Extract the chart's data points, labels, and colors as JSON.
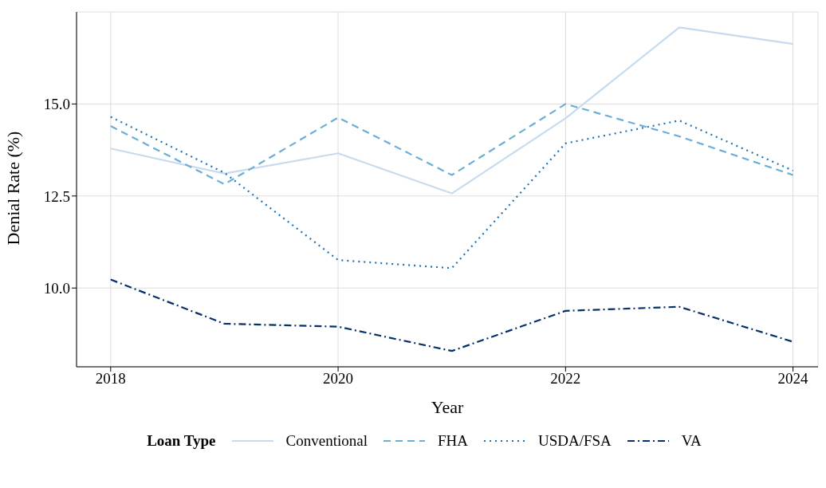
{
  "chart_data": {
    "type": "line",
    "xlabel": "Year",
    "ylabel": "Denial Rate (%)",
    "legend_title": "Loan Type",
    "x": [
      2018,
      2019,
      2020,
      2021,
      2022,
      2023,
      2024
    ],
    "series": [
      {
        "name": "Conventional",
        "color": "#c6dbef",
        "line_style": "solid",
        "values": [
          13.79,
          13.11,
          13.66,
          12.57,
          14.61,
          17.08,
          16.63
        ]
      },
      {
        "name": "FHA",
        "color": "#6baed6",
        "line_style": "dashed",
        "values": [
          14.4,
          12.82,
          14.63,
          13.07,
          15.0,
          14.12,
          13.07
        ]
      },
      {
        "name": "USDA/FSA",
        "color": "#2171b5",
        "line_style": "dotted",
        "values": [
          14.65,
          13.13,
          10.76,
          10.54,
          13.93,
          14.55,
          13.19
        ]
      },
      {
        "name": "VA",
        "color": "#08306b",
        "line_style": "dashdot",
        "values": [
          10.23,
          9.03,
          8.95,
          8.29,
          9.38,
          9.49,
          8.54
        ]
      }
    ],
    "xlim": [
      2017.7,
      2024.22
    ],
    "xticks": [
      2018,
      2020,
      2022,
      2024
    ],
    "ylim": [
      7.86,
      17.5
    ],
    "yticks": [
      {
        "value": 10,
        "label": "10.0"
      },
      {
        "value": 12.5,
        "label": "12.5"
      },
      {
        "value": 15,
        "label": "15.0"
      }
    ],
    "grid": true,
    "legend": "bottom",
    "marker": "none"
  }
}
